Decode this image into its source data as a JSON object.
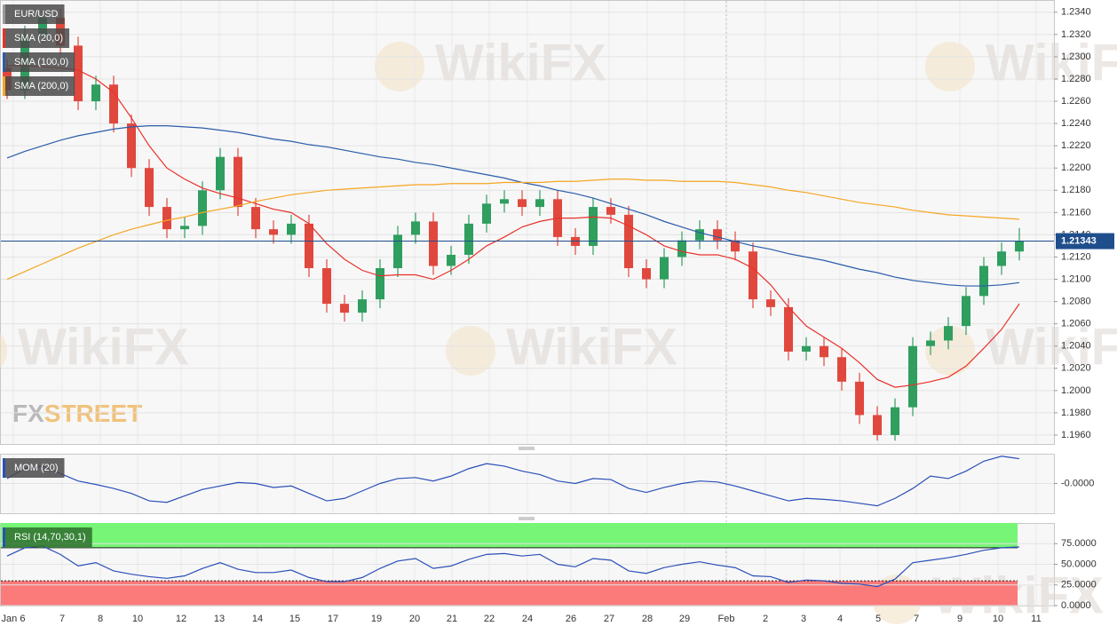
{
  "chart_data": [
    {
      "type": "candlestick",
      "name": "EUR/USD",
      "up_color": "#2f9e5f",
      "down_color": "#e0483e",
      "open": [
        1.229,
        1.227,
        1.232,
        1.2335,
        1.231,
        1.226,
        1.2275,
        1.224,
        1.22,
        1.2165,
        1.2145,
        1.2148,
        1.218,
        1.221,
        1.2165,
        1.2145,
        1.214,
        1.215,
        1.211,
        1.2078,
        1.207,
        1.2082,
        1.211,
        1.214,
        1.2152,
        1.2112,
        1.2122,
        1.215,
        1.2168,
        1.2172,
        1.2165,
        1.2172,
        1.2138,
        1.213,
        1.2165,
        1.2158,
        1.211,
        1.21,
        1.212,
        1.2135,
        1.2145,
        1.2135,
        1.2125,
        1.2082,
        1.2075,
        1.2035,
        1.204,
        1.203,
        1.2008,
        1.1978,
        1.196,
        1.1985,
        1.204,
        1.2045,
        1.2058,
        1.2085,
        1.2112,
        1.2125
      ],
      "high": [
        1.2298,
        1.2328,
        1.2343,
        1.2343,
        1.2318,
        1.2283,
        1.2283,
        1.2248,
        1.2208,
        1.2173,
        1.2156,
        1.2188,
        1.2218,
        1.2218,
        1.2173,
        1.2153,
        1.2158,
        1.2158,
        1.2118,
        1.2086,
        1.209,
        1.2118,
        1.2148,
        1.216,
        1.216,
        1.213,
        1.2158,
        1.2176,
        1.218,
        1.218,
        1.218,
        1.218,
        1.2146,
        1.2173,
        1.2173,
        1.2166,
        1.2118,
        1.2128,
        1.2143,
        1.2153,
        1.2153,
        1.2143,
        1.2133,
        1.209,
        1.2083,
        1.2048,
        1.2048,
        1.2038,
        1.2016,
        1.1986,
        1.1993,
        1.2048,
        1.2053,
        1.2066,
        1.2093,
        1.212,
        1.2133,
        1.2146
      ],
      "low": [
        1.2262,
        1.2262,
        1.2312,
        1.2302,
        1.2252,
        1.2252,
        1.2232,
        1.2192,
        1.2157,
        1.2137,
        1.2137,
        1.214,
        1.2172,
        1.2157,
        1.2137,
        1.2132,
        1.2132,
        1.2102,
        1.207,
        1.2062,
        1.2062,
        1.2074,
        1.2102,
        1.2132,
        1.2104,
        1.2104,
        1.2114,
        1.2142,
        1.216,
        1.2157,
        1.2157,
        1.213,
        1.2122,
        1.2122,
        1.215,
        1.2102,
        1.2092,
        1.2092,
        1.2112,
        1.2127,
        1.2127,
        1.2117,
        1.2074,
        1.2067,
        1.2027,
        1.2027,
        1.2022,
        1.2,
        1.197,
        1.1955,
        1.1955,
        1.1977,
        1.2032,
        1.2037,
        1.205,
        1.2077,
        1.2104,
        1.2117
      ],
      "close": [
        1.227,
        1.232,
        1.2335,
        1.231,
        1.226,
        1.2275,
        1.224,
        1.22,
        1.2165,
        1.2145,
        1.2148,
        1.218,
        1.221,
        1.2165,
        1.2145,
        1.214,
        1.215,
        1.211,
        1.2078,
        1.207,
        1.2082,
        1.211,
        1.214,
        1.2152,
        1.2112,
        1.2122,
        1.215,
        1.2168,
        1.2172,
        1.2165,
        1.2172,
        1.2138,
        1.213,
        1.2165,
        1.2158,
        1.211,
        1.21,
        1.212,
        1.2135,
        1.2145,
        1.2135,
        1.2125,
        1.2082,
        1.2075,
        1.2035,
        1.204,
        1.203,
        1.2008,
        1.1978,
        1.196,
        1.1985,
        1.204,
        1.2045,
        1.2058,
        1.2085,
        1.2112,
        1.2125,
        1.2134
      ],
      "series": [
        {
          "name": "SMA (20,0)",
          "color": "#e8312a",
          "values": [
            1.2292,
            1.2292,
            1.2291,
            1.229,
            1.2288,
            1.228,
            1.2268,
            1.2245,
            1.222,
            1.22,
            1.219,
            1.2182,
            1.2177,
            1.2173,
            1.2168,
            1.2163,
            1.216,
            1.215,
            1.2132,
            1.2118,
            1.2108,
            1.2103,
            1.2104,
            1.2104,
            1.21,
            1.2108,
            1.2118,
            1.213,
            1.2138,
            1.2147,
            1.2152,
            1.2155,
            1.2155,
            1.2156,
            1.2155,
            1.2148,
            1.214,
            1.213,
            1.2125,
            1.2122,
            1.2122,
            1.2118,
            1.211,
            1.2095,
            1.2075,
            1.2058,
            1.2048,
            1.2038,
            1.2025,
            1.201,
            1.2003,
            1.2005,
            1.2008,
            1.2012,
            1.2022,
            1.2038,
            1.2055,
            1.2078
          ]
        },
        {
          "name": "SMA (100,0)",
          "color": "#2a5caa",
          "values": [
            1.2209,
            1.2215,
            1.222,
            1.2225,
            1.2229,
            1.2232,
            1.2235,
            1.2237,
            1.2238,
            1.2238,
            1.2237,
            1.2236,
            1.2234,
            1.2232,
            1.2229,
            1.2226,
            1.2224,
            1.2221,
            1.2219,
            1.2216,
            1.2213,
            1.221,
            1.2208,
            1.2205,
            1.2203,
            1.22,
            1.2197,
            1.2194,
            1.2191,
            1.2187,
            1.2184,
            1.218,
            1.2177,
            1.2173,
            1.2168,
            1.2163,
            1.2158,
            1.2152,
            1.2147,
            1.2142,
            1.2138,
            1.2134,
            1.213,
            1.2127,
            1.2123,
            1.212,
            1.2117,
            1.2113,
            1.2109,
            1.2106,
            1.2102,
            1.2099,
            1.2097,
            1.2095,
            1.2094,
            1.2094,
            1.2095,
            1.2097
          ]
        },
        {
          "name": "SMA (200,0)",
          "color": "#f5a623",
          "values": [
            1.21,
            1.2107,
            1.2114,
            1.2121,
            1.2128,
            1.2134,
            1.214,
            1.2145,
            1.2149,
            1.2153,
            1.2156,
            1.216,
            1.2163,
            1.2166,
            1.217,
            1.2173,
            1.2176,
            1.2178,
            1.218,
            1.2181,
            1.2182,
            1.2183,
            1.2184,
            1.2185,
            1.2185,
            1.2186,
            1.2186,
            1.2186,
            1.2187,
            1.2187,
            1.2187,
            1.2188,
            1.2188,
            1.2189,
            1.219,
            1.219,
            1.2189,
            1.2189,
            1.2188,
            1.2188,
            1.2188,
            1.2187,
            1.2185,
            1.2183,
            1.218,
            1.2178,
            1.2175,
            1.2172,
            1.2169,
            1.2167,
            1.2165,
            1.2162,
            1.216,
            1.2158,
            1.2157,
            1.2156,
            1.2155,
            1.2154
          ]
        }
      ],
      "last_price": 1.21343,
      "last_price_color": "#1f4e8c",
      "ylim": [
        1.1952,
        1.2351
      ],
      "yticks": [
        {
          "value": 1.196,
          "label": "1.1960"
        },
        {
          "value": 1.198,
          "label": "1.1980"
        },
        {
          "value": 1.2,
          "label": "1.2000"
        },
        {
          "value": 1.202,
          "label": "1.2020"
        },
        {
          "value": 1.204,
          "label": "1.2040"
        },
        {
          "value": 1.206,
          "label": "1.2060"
        },
        {
          "value": 1.208,
          "label": "1.2080"
        },
        {
          "value": 1.21,
          "label": "1.2100"
        },
        {
          "value": 1.212,
          "label": "1.2120"
        },
        {
          "value": 1.214,
          "label": "1.2140"
        },
        {
          "value": 1.216,
          "label": "1.2160"
        },
        {
          "value": 1.218,
          "label": "1.2180"
        },
        {
          "value": 1.22,
          "label": "1.2200"
        },
        {
          "value": 1.222,
          "label": "1.2220"
        },
        {
          "value": 1.224,
          "label": "1.2240"
        },
        {
          "value": 1.226,
          "label": "1.2260"
        },
        {
          "value": 1.228,
          "label": "1.2280"
        },
        {
          "value": 1.23,
          "label": "1.2300"
        },
        {
          "value": 1.232,
          "label": "1.2320"
        },
        {
          "value": 1.234,
          "label": "1.2340"
        }
      ],
      "grid": true
    },
    {
      "type": "line",
      "series": [
        {
          "name": "MOM (20)",
          "color": "#2a4fb8",
          "values": [
            0.001,
            0.003,
            0.0035,
            0.002,
            0.0005,
            -0.0002,
            -0.001,
            -0.002,
            -0.0035,
            -0.0038,
            -0.0025,
            -0.0012,
            -0.0005,
            0.0002,
            0.0,
            -0.0008,
            -0.0005,
            -0.002,
            -0.0035,
            -0.003,
            -0.0015,
            0.0,
            0.001,
            0.0012,
            0.0005,
            0.0015,
            0.003,
            0.004,
            0.0035,
            0.0025,
            0.0018,
            0.0005,
            0.0,
            0.001,
            0.0008,
            -0.001,
            -0.0018,
            -0.0008,
            0.0,
            0.0005,
            0.0003,
            -0.0005,
            -0.0015,
            -0.0025,
            -0.0035,
            -0.003,
            -0.0032,
            -0.0035,
            -0.004,
            -0.0045,
            -0.003,
            -0.001,
            0.0015,
            0.001,
            0.0025,
            0.0045,
            0.0055,
            0.005
          ]
        }
      ],
      "ylim": [
        -0.006,
        0.006
      ],
      "yticks": [
        {
          "value": 0,
          "label": "-0.0000"
        }
      ],
      "grid": true
    },
    {
      "type": "line",
      "series": [
        {
          "name": "RSI (14,70,30,1)",
          "color": "#2a4fb8",
          "values": [
            60,
            70,
            72,
            62,
            48,
            52,
            42,
            38,
            35,
            33,
            36,
            45,
            52,
            44,
            40,
            40,
            43,
            34,
            29,
            29,
            34,
            45,
            54,
            57,
            45,
            48,
            56,
            62,
            63,
            60,
            62,
            50,
            47,
            57,
            55,
            42,
            39,
            46,
            50,
            53,
            49,
            46,
            36,
            35,
            28,
            31,
            30,
            27,
            26,
            23,
            32,
            52,
            55,
            58,
            62,
            67,
            70,
            71
          ]
        }
      ],
      "overbought": 70,
      "oversold": 30,
      "overbought_color": "#76f576",
      "oversold_color": "#fb7a7a",
      "ylim": [
        0,
        100
      ],
      "yticks": [
        {
          "value": 0,
          "label": "0.0000"
        },
        {
          "value": 25,
          "label": "25.0000"
        },
        {
          "value": 50,
          "label": "50.0000"
        },
        {
          "value": 75,
          "label": "75.0000"
        }
      ],
      "grid": true
    }
  ],
  "x_labels": [
    "Jan 6",
    "7",
    "8",
    "10",
    "12",
    "13",
    "14",
    "15",
    "17",
    "19",
    "20",
    "21",
    "22",
    "24",
    "26",
    "27",
    "28",
    "29",
    "Feb",
    "2",
    "3",
    "4",
    "5",
    "7",
    "9",
    "10",
    "11"
  ],
  "watermark": "WikiFX",
  "logo": [
    "FX",
    "STREET"
  ]
}
